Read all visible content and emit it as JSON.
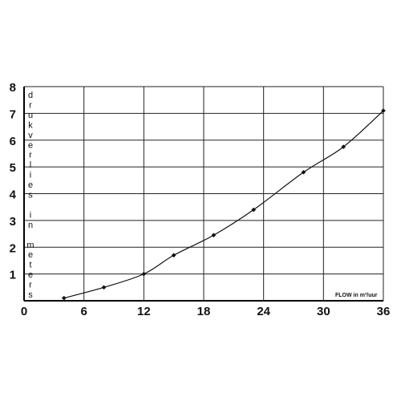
{
  "chart_data": {
    "type": "line",
    "title": "",
    "xlabel": "FLOW in m³/uur",
    "ylabel": "drukverlies in meters",
    "xlim": [
      0,
      36
    ],
    "ylim": [
      0,
      8
    ],
    "x_ticks": [
      "0",
      "6",
      "12",
      "18",
      "24",
      "30",
      "36"
    ],
    "y_ticks": [
      "1",
      "2",
      "3",
      "4",
      "5",
      "6",
      "7",
      "8"
    ],
    "grid": true,
    "series": [
      {
        "x": [
          4,
          8,
          12,
          15,
          19,
          23,
          28,
          32,
          36
        ],
        "y": [
          0.1,
          0.5,
          1.0,
          1.7,
          2.45,
          3.4,
          4.8,
          5.75,
          7.1
        ]
      }
    ]
  }
}
